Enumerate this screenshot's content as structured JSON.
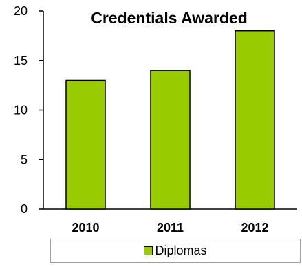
{
  "chart_data": {
    "type": "bar",
    "title": "Credentials Awarded",
    "categories": [
      "2010",
      "2011",
      "2012"
    ],
    "series": [
      {
        "name": "Diplomas",
        "values": [
          13,
          14,
          18
        ],
        "color": "#99cc00"
      }
    ],
    "xlabel": "",
    "ylabel": "",
    "ylim": [
      0,
      20
    ],
    "yticks": [
      "0",
      "5",
      "10",
      "15",
      "20"
    ],
    "grid": false,
    "legend_position": "bottom"
  }
}
